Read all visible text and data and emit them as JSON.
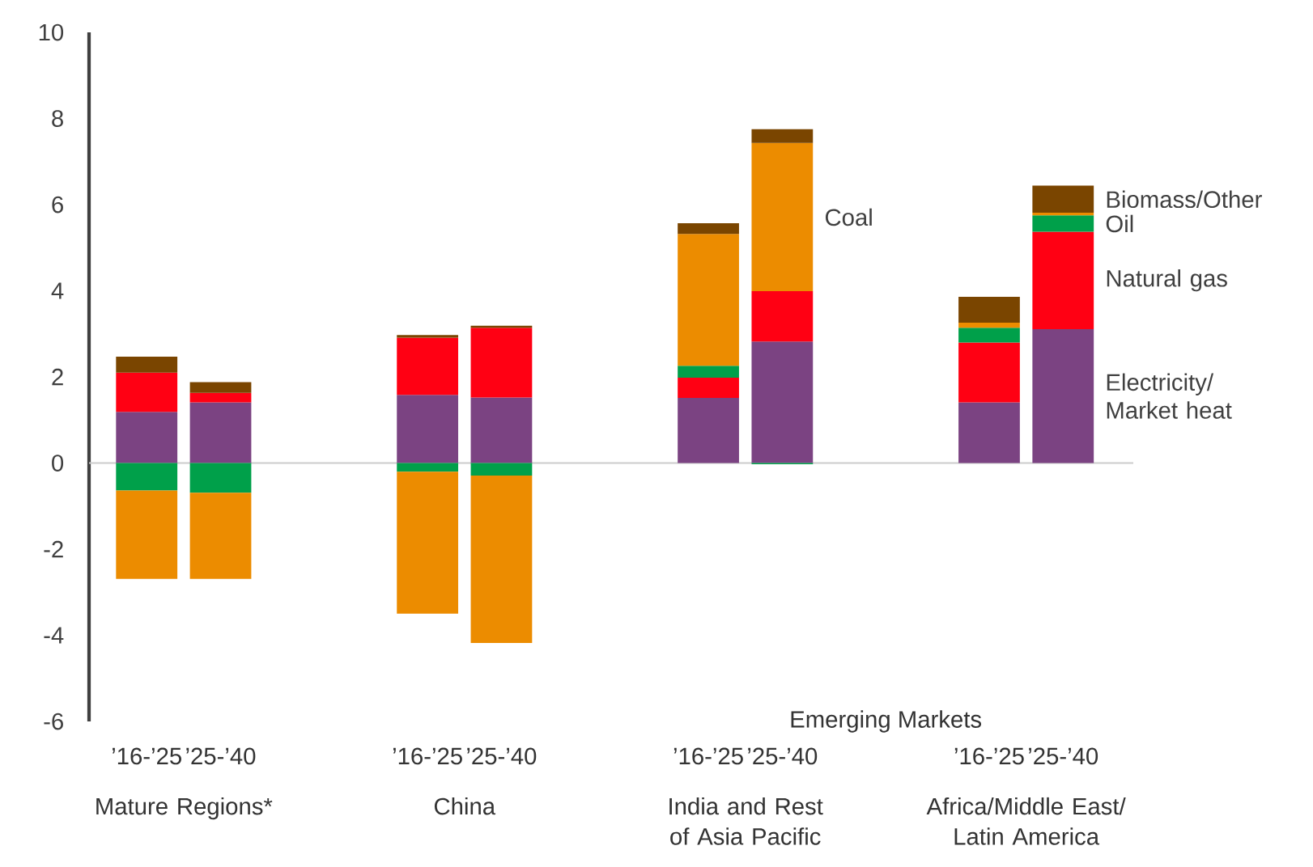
{
  "chart_data": {
    "type": "bar",
    "stacked": true,
    "categories": [
      "’16-’25",
      "’25-’40",
      "’16-’25",
      "’25-’40",
      "’16-’25",
      "’25-’40",
      "’16-’25",
      "’25-’40"
    ],
    "series": [
      {
        "name": "Electricity/ Market heat",
        "color": "#7b4382",
        "values": [
          1.19,
          1.41,
          1.58,
          1.52,
          1.51,
          2.82,
          1.41,
          3.11
        ]
      },
      {
        "name": "Natural gas",
        "color": "#ff0013",
        "values": [
          0.91,
          0.22,
          1.33,
          1.62,
          0.47,
          1.17,
          1.39,
          2.26
        ]
      },
      {
        "name": "Oil",
        "color": "#00a04a",
        "values": [
          -0.64,
          -0.69,
          -0.2,
          -0.29,
          0.28,
          -0.03,
          0.34,
          0.38
        ]
      },
      {
        "name": "Coal",
        "color": "#ec8c00",
        "values": [
          -2.05,
          -2.0,
          -3.3,
          -3.89,
          3.06,
          3.44,
          0.12,
          0.06
        ]
      },
      {
        "name": "Biomass/Other",
        "color": "#7a4500",
        "values": [
          0.37,
          0.25,
          0.06,
          0.05,
          0.25,
          0.32,
          0.6,
          0.63
        ]
      }
    ],
    "ylim": [
      -6,
      10
    ],
    "yticks": [
      -6,
      -4,
      -2,
      0,
      2,
      4,
      6,
      8,
      10
    ],
    "annotations": [
      "Mature Regions*",
      "China",
      "India and Rest of Asia Pacific",
      "Africa/Middle East/ Latin America",
      "Emerging Markets"
    ]
  }
}
